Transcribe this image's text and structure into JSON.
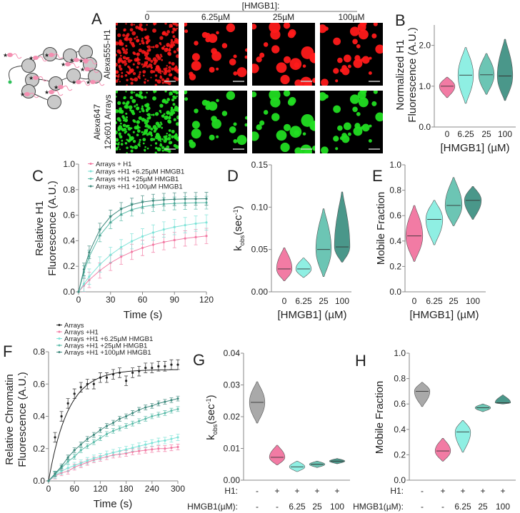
{
  "panel_labels": [
    "A",
    "B",
    "C",
    "D",
    "E",
    "F",
    "G",
    "H"
  ],
  "panel_a": {
    "header": "[HMGB1]:",
    "columns": [
      "0",
      "6.25µM",
      "25µM",
      "100µM"
    ],
    "rows": {
      "h1": "Alexa555-H1",
      "arrays_line1": "Alexa647",
      "arrays_line2": "12x601 Arrays"
    },
    "colors": {
      "h1": "#ff1a1a",
      "arrays": "#22dd22",
      "h1_label": "#e8384a",
      "arrays_label": "#2fbf5a"
    }
  },
  "colors": {
    "none": "#a9a9a9",
    "h1": "#f27ba4",
    "h1_6_25": "#8fefe3",
    "h1_25": "#6cc5b4",
    "h1_100": "#4a978a",
    "arrays_curve": "#222222"
  },
  "chart_data": [
    {
      "id": "B",
      "type": "violin",
      "categories": [
        "0",
        "6.25",
        "25",
        "100"
      ],
      "xlabel": "[HMGB1] (µM)",
      "ylabel": [
        "Normalized H1",
        "Fluorescence (A.U.)"
      ],
      "ylim": [
        0,
        2.5
      ],
      "yticks": [
        0,
        1,
        2
      ],
      "ytick_labels": [
        "0.0",
        "1.0",
        "2.0"
      ],
      "violins": [
        {
          "median": 1.0,
          "min": 0.72,
          "max": 1.22,
          "color": "#f27ba4"
        },
        {
          "median": 1.27,
          "min": 0.58,
          "max": 1.95,
          "color": "#8fefe3"
        },
        {
          "median": 1.28,
          "min": 0.8,
          "max": 1.8,
          "color": "#6cc5b4"
        },
        {
          "median": 1.25,
          "min": 0.65,
          "max": 2.15,
          "color": "#4a978a"
        }
      ]
    },
    {
      "id": "C",
      "type": "line",
      "xlabel": "Time (s)",
      "ylabel": [
        "Relative H1",
        "Fluorescence (A.U.)"
      ],
      "xlim": [
        0,
        120
      ],
      "ylim": [
        0,
        1
      ],
      "xticks": [
        0,
        30,
        60,
        90,
        120
      ],
      "xtick_labels": [
        "0",
        "30",
        "60",
        "90",
        "120"
      ],
      "yticks": [
        0,
        0.2,
        0.4,
        0.6,
        0.8,
        1.0
      ],
      "ytick_labels": [
        "0.0",
        "0.2",
        "0.4",
        "0.6",
        "0.8",
        "1.0"
      ],
      "x": [
        0,
        5,
        10,
        20,
        30,
        40,
        50,
        60,
        70,
        80,
        90,
        100,
        110,
        120
      ],
      "series": [
        {
          "name": "Arrays + H1",
          "color": "#f27ba4",
          "error": 0.06,
          "values": [
            0,
            0.049,
            0.093,
            0.167,
            0.227,
            0.275,
            0.313,
            0.344,
            0.369,
            0.389,
            0.405,
            0.418,
            0.428,
            0.437
          ]
        },
        {
          "name": "Arrays +H1 +6.25µM HMGB1",
          "color": "#7fe3d8",
          "error": 0.06,
          "values": [
            0,
            0.063,
            0.119,
            0.214,
            0.289,
            0.349,
            0.396,
            0.434,
            0.464,
            0.488,
            0.507,
            0.522,
            0.534,
            0.543
          ]
        },
        {
          "name": "Arrays +H1 +25µM HMGB1",
          "color": "#5cbcaa",
          "error": 0.05,
          "values": [
            0,
            0.155,
            0.275,
            0.442,
            0.544,
            0.606,
            0.643,
            0.665,
            0.679,
            0.687,
            0.692,
            0.695,
            0.697,
            0.698
          ]
        },
        {
          "name": "Arrays +H1 +100µM HMGB1",
          "color": "#3f8a7e",
          "error": 0.05,
          "values": [
            0,
            0.175,
            0.309,
            0.487,
            0.59,
            0.649,
            0.683,
            0.703,
            0.714,
            0.721,
            0.725,
            0.727,
            0.728,
            0.729
          ]
        }
      ]
    },
    {
      "id": "D",
      "type": "violin",
      "categories": [
        "0",
        "6.25",
        "25",
        "100"
      ],
      "xlabel": "[HMGB1] (µM)",
      "ylabel": {
        "main": "k",
        "subscript": "obs",
        "unit": "(sec",
        "superscript": "-1",
        "end": ")"
      },
      "ylim": [
        0,
        0.15
      ],
      "yticks": [
        0,
        0.05,
        0.1,
        0.15
      ],
      "ytick_labels": [
        "0.00",
        "0.05",
        "0.10",
        "0.15"
      ],
      "violins": [
        {
          "median": 0.027,
          "min": 0.013,
          "max": 0.052,
          "color": "#f27ba4"
        },
        {
          "median": 0.027,
          "min": 0.017,
          "max": 0.04,
          "color": "#8fefe3"
        },
        {
          "median": 0.05,
          "min": 0.018,
          "max": 0.098,
          "color": "#6cc5b4"
        },
        {
          "median": 0.053,
          "min": 0.035,
          "max": 0.118,
          "color": "#4a978a"
        }
      ]
    },
    {
      "id": "E",
      "type": "violin",
      "categories": [
        "0",
        "6.25",
        "25",
        "100"
      ],
      "xlabel": "[HMGB1] (µM)",
      "ylabel": "Mobile Fraction",
      "ylim": [
        0,
        1
      ],
      "yticks": [
        0,
        0.2,
        0.4,
        0.6,
        0.8,
        1.0
      ],
      "ytick_labels": [
        "0.0",
        "0.2",
        "0.4",
        "0.6",
        "0.8",
        "1.0"
      ],
      "violins": [
        {
          "median": 0.44,
          "min": 0.24,
          "max": 0.68,
          "color": "#f27ba4"
        },
        {
          "median": 0.57,
          "min": 0.37,
          "max": 0.72,
          "color": "#8fefe3"
        },
        {
          "median": 0.68,
          "min": 0.52,
          "max": 0.9,
          "color": "#6cc5b4"
        },
        {
          "median": 0.72,
          "min": 0.57,
          "max": 0.83,
          "color": "#4a978a"
        }
      ]
    },
    {
      "id": "F",
      "type": "line",
      "xlabel": "Time (s)",
      "ylabel": [
        "Relative Chromatin",
        "Fluorescence (A.U.)"
      ],
      "xlim": [
        0,
        300
      ],
      "ylim": [
        0,
        0.8
      ],
      "xticks": [
        0,
        60,
        120,
        180,
        240,
        300
      ],
      "xtick_labels": [
        "0",
        "60",
        "120",
        "180",
        "240",
        "300"
      ],
      "yticks": [
        0,
        0.2,
        0.4,
        0.6,
        0.8
      ],
      "ytick_labels": [
        "0.0",
        "0.2",
        "0.4",
        "0.6",
        "0.8"
      ],
      "x": [
        0,
        15,
        30,
        45,
        60,
        75,
        90,
        105,
        120,
        135,
        150,
        165,
        180,
        195,
        210,
        225,
        240,
        255,
        270,
        285,
        300
      ],
      "series": [
        {
          "name": "Arrays",
          "color": "#222222",
          "error": 0.03,
          "fit": {
            "plateau": 0.69,
            "k": 0.022
          },
          "values": [
            0,
            0.27,
            0.4,
            0.48,
            0.54,
            0.58,
            0.6,
            0.6,
            0.64,
            0.64,
            0.66,
            0.67,
            0.62,
            0.67,
            0.68,
            0.7,
            0.7,
            0.71,
            0.71,
            0.72,
            0.72
          ]
        },
        {
          "name": "Arrays +H1",
          "color": "#f27ba4",
          "error": 0.018,
          "values": [
            0,
            0.03,
            0.05,
            0.06,
            0.085,
            0.1,
            0.115,
            0.13,
            0.14,
            0.15,
            0.16,
            0.165,
            0.17,
            0.18,
            0.185,
            0.19,
            0.195,
            0.2,
            0.2,
            0.205,
            0.21
          ]
        },
        {
          "name": "Arrays +H1 +6.25µM HMGB1",
          "color": "#7fe3d8",
          "error": 0.02,
          "values": [
            0,
            0.035,
            0.06,
            0.08,
            0.095,
            0.11,
            0.125,
            0.14,
            0.15,
            0.165,
            0.175,
            0.185,
            0.195,
            0.205,
            0.215,
            0.225,
            0.235,
            0.245,
            0.25,
            0.26,
            0.27
          ]
        },
        {
          "name": "Arrays +H1 +25µM HMGB1",
          "color": "#5cbcaa",
          "error": 0.015,
          "values": [
            0,
            0.04,
            0.08,
            0.12,
            0.15,
            0.19,
            0.215,
            0.24,
            0.265,
            0.29,
            0.31,
            0.325,
            0.34,
            0.355,
            0.37,
            0.385,
            0.4,
            0.41,
            0.42,
            0.435,
            0.445
          ]
        },
        {
          "name": "Arrays +H1 +100µM HMGB1",
          "color": "#3f8a7e",
          "error": 0.015,
          "values": [
            0,
            0.045,
            0.09,
            0.145,
            0.19,
            0.225,
            0.26,
            0.285,
            0.315,
            0.34,
            0.36,
            0.385,
            0.4,
            0.42,
            0.44,
            0.455,
            0.465,
            0.48,
            0.49,
            0.5,
            0.51
          ]
        }
      ]
    },
    {
      "id": "G",
      "type": "violin",
      "row_labels": [
        "H1:",
        "HMGB1(µM):"
      ],
      "h1": [
        "-",
        "+",
        "+",
        "+",
        "+"
      ],
      "hmgb1": [
        "-",
        "-",
        "6.25",
        "25",
        "100"
      ],
      "ylabel": {
        "main": "k",
        "subscript": "obs",
        "unit": "(sec",
        "superscript": "-1",
        "end": ")"
      },
      "ylim": [
        0,
        0.04
      ],
      "yticks": [
        0,
        0.01,
        0.02,
        0.03,
        0.04
      ],
      "ytick_labels": [
        "0.00",
        "0.01",
        "0.02",
        "0.03",
        "0.04"
      ],
      "violins": [
        {
          "median": 0.0245,
          "min": 0.018,
          "max": 0.031,
          "color": "#a9a9a9"
        },
        {
          "median": 0.0072,
          "min": 0.0048,
          "max": 0.011,
          "color": "#f27ba4"
        },
        {
          "median": 0.0042,
          "min": 0.0027,
          "max": 0.006,
          "color": "#8fefe3"
        },
        {
          "median": 0.005,
          "min": 0.004,
          "max": 0.006,
          "color": "#6cc5b4"
        },
        {
          "median": 0.006,
          "min": 0.0052,
          "max": 0.0068,
          "color": "#4a978a"
        }
      ]
    },
    {
      "id": "H",
      "type": "violin",
      "row_labels": [
        "H1:",
        "HMGB1(µM):"
      ],
      "h1": [
        "-",
        "+",
        "+",
        "+",
        "+"
      ],
      "hmgb1": [
        "-",
        "-",
        "6.25",
        "25",
        "100"
      ],
      "ylabel": "Mobile Fraction",
      "ylim": [
        0,
        1
      ],
      "yticks": [
        0,
        0.2,
        0.4,
        0.6,
        0.8,
        1.0
      ],
      "ytick_labels": [
        "0.0",
        "0.2",
        "0.4",
        "0.6",
        "0.8",
        "1.0"
      ],
      "violins": [
        {
          "median": 0.7,
          "min": 0.58,
          "max": 0.77,
          "color": "#a9a9a9"
        },
        {
          "median": 0.23,
          "min": 0.15,
          "max": 0.33,
          "color": "#f27ba4"
        },
        {
          "median": 0.38,
          "min": 0.22,
          "max": 0.47,
          "color": "#8fefe3"
        },
        {
          "median": 0.57,
          "min": 0.54,
          "max": 0.6,
          "color": "#6cc5b4"
        },
        {
          "median": 0.61,
          "min": 0.6,
          "max": 0.67,
          "color": "#4a978a"
        }
      ]
    }
  ]
}
